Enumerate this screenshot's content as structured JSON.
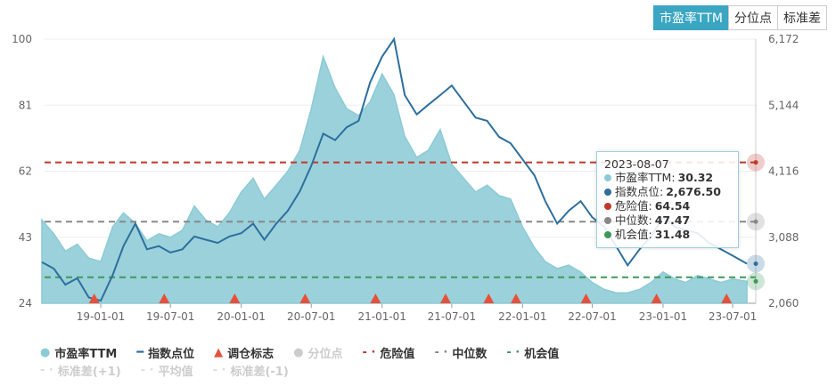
{
  "tabs": [
    {
      "label": "市盈率TTM",
      "active": true
    },
    {
      "label": "分位点",
      "active": false
    },
    {
      "label": "标准差",
      "active": false
    }
  ],
  "colors": {
    "pe": "#8ccbd6",
    "pe_fill": "#9bd1da",
    "index": "#2d6f9e",
    "danger": "#c0392b",
    "median": "#888888",
    "opportunity": "#3c9a5a",
    "marker": "#e8503a"
  },
  "chart_data": {
    "type": "line",
    "left_axis": {
      "ticks": [
        "24",
        "43",
        "62",
        "81",
        "100"
      ],
      "range": [
        24,
        100
      ]
    },
    "right_axis": {
      "ticks": [
        "2,060",
        "3,088",
        "4,116",
        "5,144",
        "6,172"
      ],
      "range": [
        2060,
        6172
      ]
    },
    "x_ticks": [
      "19-01-01",
      "19-07-01",
      "20-01-01",
      "20-07-01",
      "21-01-01",
      "21-07-01",
      "22-01-01",
      "22-07-01",
      "23-01-01",
      "23-07-01"
    ],
    "x_tick_dates": [
      "2019-01-01",
      "2019-07-01",
      "2020-01-01",
      "2020-07-01",
      "2021-01-01",
      "2021-07-01",
      "2022-01-01",
      "2022-07-01",
      "2023-01-01",
      "2023-07-01"
    ],
    "x_range": [
      "2018-08-08",
      "2023-08-30"
    ],
    "dates": [
      "2018-08",
      "2018-09",
      "2018-10",
      "2018-11",
      "2018-12",
      "2019-01",
      "2019-02",
      "2019-03",
      "2019-04",
      "2019-05",
      "2019-06",
      "2019-07",
      "2019-08",
      "2019-09",
      "2019-10",
      "2019-11",
      "2019-12",
      "2020-01",
      "2020-02",
      "2020-03",
      "2020-04",
      "2020-05",
      "2020-06",
      "2020-07",
      "2020-08",
      "2020-09",
      "2020-10",
      "2020-11",
      "2020-12",
      "2021-01",
      "2021-02",
      "2021-03",
      "2021-04",
      "2021-05",
      "2021-06",
      "2021-07",
      "2021-08",
      "2021-09",
      "2021-10",
      "2021-11",
      "2021-12",
      "2022-01",
      "2022-02",
      "2022-03",
      "2022-04",
      "2022-05",
      "2022-06",
      "2022-07",
      "2022-08",
      "2022-09",
      "2022-10",
      "2022-11",
      "2022-12",
      "2023-01",
      "2023-02",
      "2023-03",
      "2023-04",
      "2023-05",
      "2023-06",
      "2023-07",
      "2023-08-07"
    ],
    "series": [
      {
        "name": "市盈率TTM",
        "axis": "left",
        "type": "area",
        "values": [
          48,
          44,
          39,
          41,
          37,
          36,
          46,
          50,
          47,
          42,
          44,
          43,
          45,
          52,
          48,
          46,
          50,
          56,
          60,
          54,
          58,
          62,
          68,
          80,
          95,
          86,
          80,
          78,
          82,
          90,
          84,
          72,
          66,
          68,
          74,
          64,
          60,
          56,
          58,
          55,
          54,
          46,
          40,
          36,
          34,
          35,
          33,
          30,
          28,
          27,
          27,
          28,
          30,
          33,
          31,
          30,
          32,
          31,
          30,
          31,
          30.32
        ]
      },
      {
        "name": "指数点位",
        "axis": "right",
        "type": "line",
        "values": [
          2700,
          2600,
          2350,
          2450,
          2150,
          2100,
          2500,
          2950,
          3300,
          2900,
          2950,
          2850,
          2900,
          3100,
          3050,
          3000,
          3100,
          3150,
          3300,
          3050,
          3300,
          3500,
          3800,
          4200,
          4700,
          4600,
          4800,
          4900,
          5500,
          5900,
          6172,
          5300,
          5000,
          5150,
          5300,
          5450,
          5200,
          4950,
          4900,
          4650,
          4550,
          4300,
          4050,
          3650,
          3300,
          3500,
          3650,
          3400,
          3250,
          2950,
          2650,
          2900,
          3100,
          3400,
          3250,
          3200,
          3150,
          3000,
          2900,
          2800,
          2676.5
        ]
      }
    ],
    "reference_lines": [
      {
        "name": "危险值",
        "value": 64.54
      },
      {
        "name": "中位数",
        "value": 47.47
      },
      {
        "name": "机会值",
        "value": 31.48
      }
    ],
    "rebalance_markers": [
      "2018-12-15",
      "2019-06-15",
      "2019-12-15",
      "2020-06-15",
      "2020-12-15",
      "2021-06-15",
      "2021-10-05",
      "2021-12-15",
      "2022-06-15",
      "2022-12-15",
      "2023-06-15"
    ]
  },
  "tooltip": {
    "date": "2023-08-07",
    "rows": [
      {
        "label": "市盈率TTM:",
        "value": "30.32",
        "color": "#8ccbd6"
      },
      {
        "label": "指数点位:",
        "value": "2,676.50",
        "color": "#2d6f9e"
      },
      {
        "label": "危险值:",
        "value": "64.54",
        "color": "#c0392b"
      },
      {
        "label": "中位数:",
        "value": "47.47",
        "color": "#888888"
      },
      {
        "label": "机会值:",
        "value": "31.48",
        "color": "#3c9a5a"
      }
    ]
  },
  "legend": {
    "row1": [
      {
        "label": "市盈率TTM",
        "sym": "●",
        "color": "#8ccbd6",
        "off": false
      },
      {
        "label": "指数点位",
        "sym": "━",
        "color": "#2d6f9e",
        "off": false
      },
      {
        "label": "调仓标志",
        "sym": "▲",
        "color": "#e8503a",
        "off": false
      },
      {
        "label": "分位点",
        "sym": "●",
        "color": "#ccc",
        "off": true
      },
      {
        "label": "危险值",
        "sym": "- ·",
        "color": "#c0392b",
        "off": false
      },
      {
        "label": "中位数",
        "sym": "- ·",
        "color": "#888888",
        "off": false
      },
      {
        "label": "机会值",
        "sym": "- ·",
        "color": "#3c9a5a",
        "off": false
      }
    ],
    "row2": [
      {
        "label": "标准差(+1)",
        "sym": "- ·",
        "color": "#ddd",
        "off": true
      },
      {
        "label": "平均值",
        "sym": "- ·",
        "color": "#ddd",
        "off": true
      },
      {
        "label": "标准差(-1)",
        "sym": "- ·",
        "color": "#ddd",
        "off": true
      }
    ]
  }
}
